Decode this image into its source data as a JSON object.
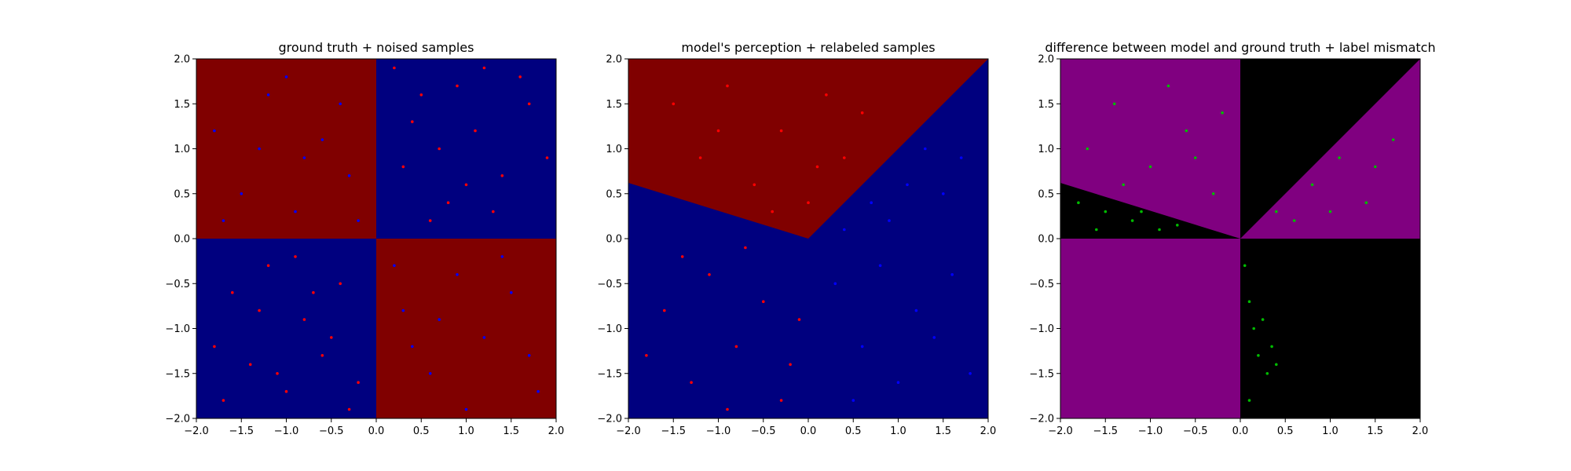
{
  "chart_data": [
    {
      "type": "scatter",
      "title": "ground truth + noised samples",
      "xlim": [
        -2,
        2
      ],
      "ylim": [
        -2,
        2
      ],
      "xticks": [
        "−2.0",
        "−1.5",
        "−1.0",
        "−0.5",
        "0.0",
        "0.5",
        "1.0",
        "1.5",
        "2.0"
      ],
      "yticks": [
        "−2.0",
        "−1.5",
        "−1.0",
        "−0.5",
        "0.0",
        "0.5",
        "1.0",
        "1.5",
        "2.0"
      ],
      "background": "quadrants: red where x*y<0, blue where x*y>0",
      "region_colors": {
        "red": "#800000",
        "blue": "#00007f"
      },
      "point_colors": {
        "red": "#ff0000",
        "blue": "#0000ff"
      },
      "series": [
        {
          "color": "red",
          "points": [
            [
              -1.8,
              -1.2
            ],
            [
              -1.6,
              -0.6
            ],
            [
              -1.4,
              -1.4
            ],
            [
              -1.2,
              -0.3
            ],
            [
              -1.0,
              -1.7
            ],
            [
              -0.8,
              -0.9
            ],
            [
              -0.6,
              -1.3
            ],
            [
              -0.4,
              -0.5
            ],
            [
              -0.2,
              -1.6
            ],
            [
              -1.7,
              -1.8
            ],
            [
              -1.3,
              -0.8
            ],
            [
              -0.9,
              -0.2
            ],
            [
              -0.5,
              -1.1
            ],
            [
              -0.3,
              -1.9
            ],
            [
              -1.1,
              -1.5
            ],
            [
              -0.7,
              -0.6
            ],
            [
              0.3,
              0.8
            ],
            [
              0.5,
              1.6
            ],
            [
              0.8,
              0.4
            ],
            [
              1.1,
              1.2
            ],
            [
              1.4,
              0.7
            ],
            [
              1.7,
              1.5
            ],
            [
              0.2,
              1.9
            ],
            [
              0.6,
              0.2
            ],
            [
              0.9,
              1.7
            ],
            [
              1.3,
              0.3
            ],
            [
              1.9,
              0.9
            ],
            [
              0.4,
              1.3
            ],
            [
              1.0,
              0.6
            ],
            [
              1.6,
              1.8
            ],
            [
              0.7,
              1.0
            ],
            [
              1.2,
              1.9
            ]
          ]
        },
        {
          "color": "blue",
          "points": [
            [
              -1.8,
              1.2
            ],
            [
              -1.5,
              0.5
            ],
            [
              -1.2,
              1.6
            ],
            [
              -0.9,
              0.3
            ],
            [
              -0.6,
              1.1
            ],
            [
              -0.3,
              0.7
            ],
            [
              -1.7,
              0.2
            ],
            [
              -1.0,
              1.8
            ],
            [
              -0.4,
              1.5
            ],
            [
              -0.8,
              0.9
            ],
            [
              -1.3,
              1.0
            ],
            [
              -0.2,
              0.2
            ],
            [
              0.3,
              -0.8
            ],
            [
              0.6,
              -1.5
            ],
            [
              0.9,
              -0.4
            ],
            [
              1.2,
              -1.1
            ],
            [
              1.5,
              -0.6
            ],
            [
              1.8,
              -1.7
            ],
            [
              0.4,
              -1.2
            ],
            [
              1.0,
              -1.9
            ],
            [
              1.4,
              -0.2
            ],
            [
              0.7,
              -0.9
            ],
            [
              1.7,
              -1.3
            ],
            [
              0.2,
              -0.3
            ]
          ]
        }
      ]
    },
    {
      "type": "scatter",
      "title": "model's perception + relabeled samples",
      "xlim": [
        -2,
        2
      ],
      "ylim": [
        -2,
        2
      ],
      "xticks": [
        "−2.0",
        "−1.5",
        "−1.0",
        "−0.5",
        "0.0",
        "0.5",
        "1.0",
        "1.5",
        "2.0"
      ],
      "yticks": [
        "−2.0",
        "−1.5",
        "−1.0",
        "−0.5",
        "0.0",
        "0.5",
        "1.0",
        "1.5",
        "2.0"
      ],
      "background": "red above boundary y=-0.31x (x<0) and y=x (x>0), blue below",
      "region_colors": {
        "red": "#800000",
        "blue": "#00007f"
      },
      "point_colors": {
        "red": "#ff0000",
        "blue": "#0000ff"
      },
      "series": [
        {
          "color": "red",
          "points": [
            [
              -1.5,
              1.5
            ],
            [
              -1.2,
              0.9
            ],
            [
              -0.9,
              1.7
            ],
            [
              -0.6,
              0.6
            ],
            [
              -0.3,
              1.2
            ],
            [
              0.0,
              0.4
            ],
            [
              0.2,
              1.6
            ],
            [
              0.4,
              0.9
            ],
            [
              0.6,
              1.4
            ],
            [
              -1.0,
              1.2
            ],
            [
              -0.4,
              0.3
            ],
            [
              0.1,
              0.8
            ],
            [
              -1.6,
              -0.8
            ],
            [
              -1.3,
              -1.6
            ],
            [
              -1.1,
              -0.4
            ],
            [
              -0.8,
              -1.2
            ],
            [
              -0.5,
              -0.7
            ],
            [
              -0.3,
              -1.8
            ],
            [
              -0.1,
              -0.9
            ],
            [
              -0.7,
              -0.1
            ],
            [
              -1.8,
              -1.3
            ],
            [
              -1.4,
              -0.2
            ],
            [
              -0.2,
              -1.4
            ],
            [
              -0.9,
              -1.9
            ]
          ]
        },
        {
          "color": "blue",
          "points": [
            [
              0.3,
              -0.5
            ],
            [
              0.6,
              -1.2
            ],
            [
              0.9,
              0.2
            ],
            [
              1.2,
              -0.8
            ],
            [
              1.5,
              0.5
            ],
            [
              1.8,
              -1.5
            ],
            [
              0.5,
              -1.8
            ],
            [
              0.8,
              -0.3
            ],
            [
              1.1,
              0.6
            ],
            [
              1.4,
              -1.1
            ],
            [
              1.7,
              0.9
            ],
            [
              0.4,
              0.1
            ],
            [
              1.0,
              -1.6
            ],
            [
              1.6,
              -0.4
            ],
            [
              0.7,
              0.4
            ],
            [
              1.3,
              1.0
            ]
          ]
        }
      ]
    },
    {
      "type": "scatter",
      "title": "difference between model and ground truth + label mismatch",
      "xlim": [
        -2,
        2
      ],
      "ylim": [
        -2,
        2
      ],
      "xticks": [
        "−2.0",
        "−1.5",
        "−1.0",
        "−0.5",
        "0.0",
        "0.5",
        "1.0",
        "1.5",
        "2.0"
      ],
      "yticks": [
        "−2.0",
        "−1.5",
        "−1.0",
        "−0.5",
        "0.0",
        "0.5",
        "1.0",
        "1.5",
        "2.0"
      ],
      "background": "purple where model agrees with ground truth, black where they differ",
      "region_colors": {
        "match": "#800080",
        "mismatch": "#000000"
      },
      "point_colors": {
        "mismatch": "#00bb00"
      },
      "series": [
        {
          "color": "green",
          "points": [
            [
              -1.8,
              0.4
            ],
            [
              -1.5,
              0.3
            ],
            [
              -1.2,
              0.2
            ],
            [
              -0.9,
              0.1
            ],
            [
              -1.6,
              0.1
            ],
            [
              -1.1,
              0.3
            ],
            [
              -0.7,
              0.15
            ],
            [
              -1.4,
              1.5
            ],
            [
              -1.0,
              0.8
            ],
            [
              -0.6,
              1.2
            ],
            [
              -0.3,
              0.5
            ],
            [
              -0.8,
              1.7
            ],
            [
              -0.5,
              0.9
            ],
            [
              -1.7,
              1.0
            ],
            [
              -1.3,
              0.6
            ],
            [
              -0.2,
              1.4
            ],
            [
              0.4,
              0.3
            ],
            [
              0.8,
              0.6
            ],
            [
              1.1,
              0.9
            ],
            [
              1.4,
              0.4
            ],
            [
              1.7,
              1.1
            ],
            [
              0.6,
              0.2
            ],
            [
              1.0,
              0.3
            ],
            [
              1.5,
              0.8
            ],
            [
              0.05,
              -0.3
            ],
            [
              0.1,
              -0.7
            ],
            [
              0.15,
              -1.0
            ],
            [
              0.2,
              -1.3
            ],
            [
              0.25,
              -0.9
            ],
            [
              0.3,
              -1.5
            ],
            [
              0.35,
              -1.2
            ],
            [
              0.1,
              -1.8
            ],
            [
              0.4,
              -1.4
            ]
          ]
        }
      ]
    }
  ]
}
